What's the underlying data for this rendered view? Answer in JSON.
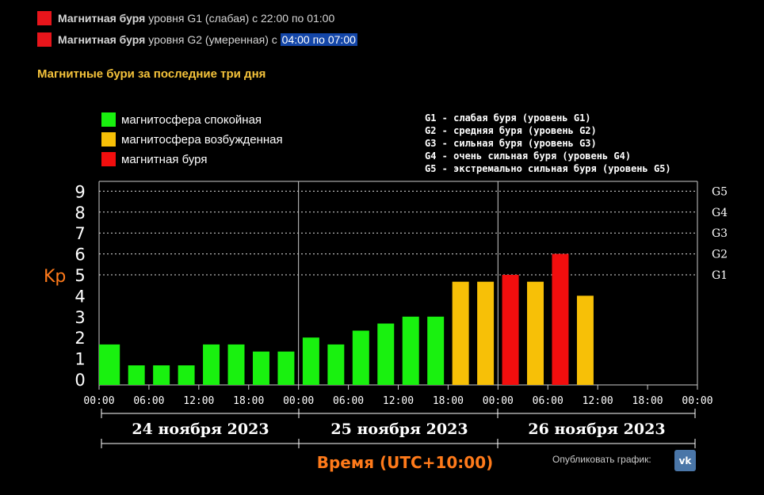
{
  "alerts": [
    {
      "bold": "Магнитная буря",
      "text": "уровня G1 (слабая) с 22:00 по 01:00",
      "highlight": "",
      "color": "#e8151b"
    },
    {
      "bold": "Магнитная буря",
      "text": "уровня G2 (умеренная) с",
      "highlight": "04:00 по 07:00",
      "color": "#e8151b"
    }
  ],
  "section_title": "Магнитные бури за последние три дня",
  "publish_label": "Опубликовать график:",
  "vk_icon": "vk-logo-icon",
  "chart_data": {
    "type": "bar",
    "ylabel": "Kp",
    "xlabel": "Время (UTC+10:00)",
    "ylim": [
      0,
      9
    ],
    "yticks": [
      0,
      1,
      2,
      3,
      4,
      5,
      6,
      7,
      8,
      9
    ],
    "grid": "dotted horizontal lines at 5-9",
    "right_scale": [
      {
        "label": "G5",
        "kp": 9
      },
      {
        "label": "G4",
        "kp": 8
      },
      {
        "label": "G3",
        "kp": 7
      },
      {
        "label": "G2",
        "kp": 6
      },
      {
        "label": "G1",
        "kp": 5
      }
    ],
    "x_ticks": [
      "00:00",
      "06:00",
      "12:00",
      "18:00",
      "00:00",
      "06:00",
      "12:00",
      "18:00",
      "00:00",
      "06:00",
      "12:00",
      "18:00",
      "00:00"
    ],
    "days": [
      "24 ноября 2023",
      "25 ноября 2023",
      "26 ноября 2023"
    ],
    "legend_left": [
      {
        "label": "магнитосфера спокойная",
        "color": "#19f10f"
      },
      {
        "label": "магнитосфера возбужденная",
        "color": "#f7c007"
      },
      {
        "label": "магнитная буря",
        "color": "#f20e0e"
      }
    ],
    "legend_right": [
      "G1 - слабая буря (уровень G1)",
      "G2 - средняя буря (уровень G2)",
      "G3 - сильная буря (уровень G3)",
      "G4 - очень сильная буря (уровень G4)",
      "G5 - экстремально сильная буря (уровень G5)"
    ],
    "bar_interval_hours": 3,
    "values": [
      1.67,
      0.67,
      0.67,
      0.67,
      1.67,
      1.67,
      1.33,
      1.33,
      2.0,
      1.67,
      2.33,
      2.67,
      3.0,
      3.0,
      4.67,
      4.67,
      5.0,
      4.67,
      6.0,
      4.0
    ],
    "levels": [
      "quiet",
      "quiet",
      "quiet",
      "quiet",
      "quiet",
      "quiet",
      "quiet",
      "quiet",
      "quiet",
      "quiet",
      "quiet",
      "quiet",
      "quiet",
      "quiet",
      "active",
      "active",
      "storm",
      "active",
      "storm",
      "active"
    ],
    "level_colors": {
      "quiet": "#19f10f",
      "active": "#f7c007",
      "storm": "#f20e0e"
    }
  }
}
